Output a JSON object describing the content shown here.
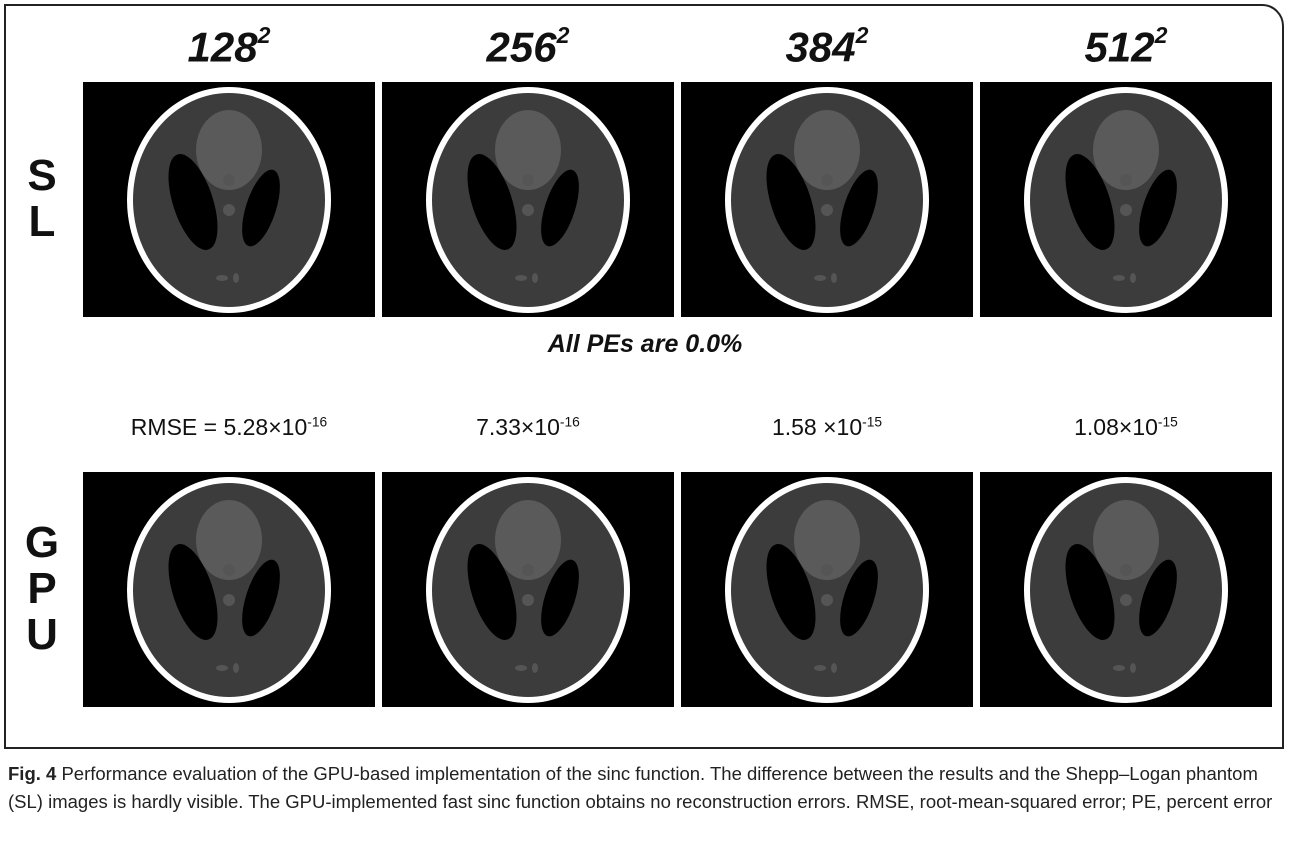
{
  "columns": [
    {
      "base": "128",
      "exp": "2"
    },
    {
      "base": "256",
      "exp": "2"
    },
    {
      "base": "384",
      "exp": "2"
    },
    {
      "base": "512",
      "exp": "2"
    }
  ],
  "rows": [
    {
      "letters": [
        "S",
        "L"
      ]
    },
    {
      "letters": [
        "G",
        "P",
        "U"
      ]
    }
  ],
  "note": "All PEs are 0.0%",
  "errors": [
    {
      "text": "RMSE = 5.28×10",
      "exp": "-16"
    },
    {
      "text": "7.33×10",
      "exp": "-16"
    },
    {
      "text": "1.58 ×10",
      "exp": "-15"
    },
    {
      "text": "1.08×10",
      "exp": "-15"
    }
  ],
  "caption": {
    "label": "Fig. 4",
    "text": " Performance evaluation of the GPU-based implementation of the sinc function. The difference between the results and the Shepp–Logan phantom (SL) images is hardly visible. The GPU-implemented fast sinc function obtains no reconstruction errors. RMSE, root-mean-squared error; PE, percent error"
  }
}
